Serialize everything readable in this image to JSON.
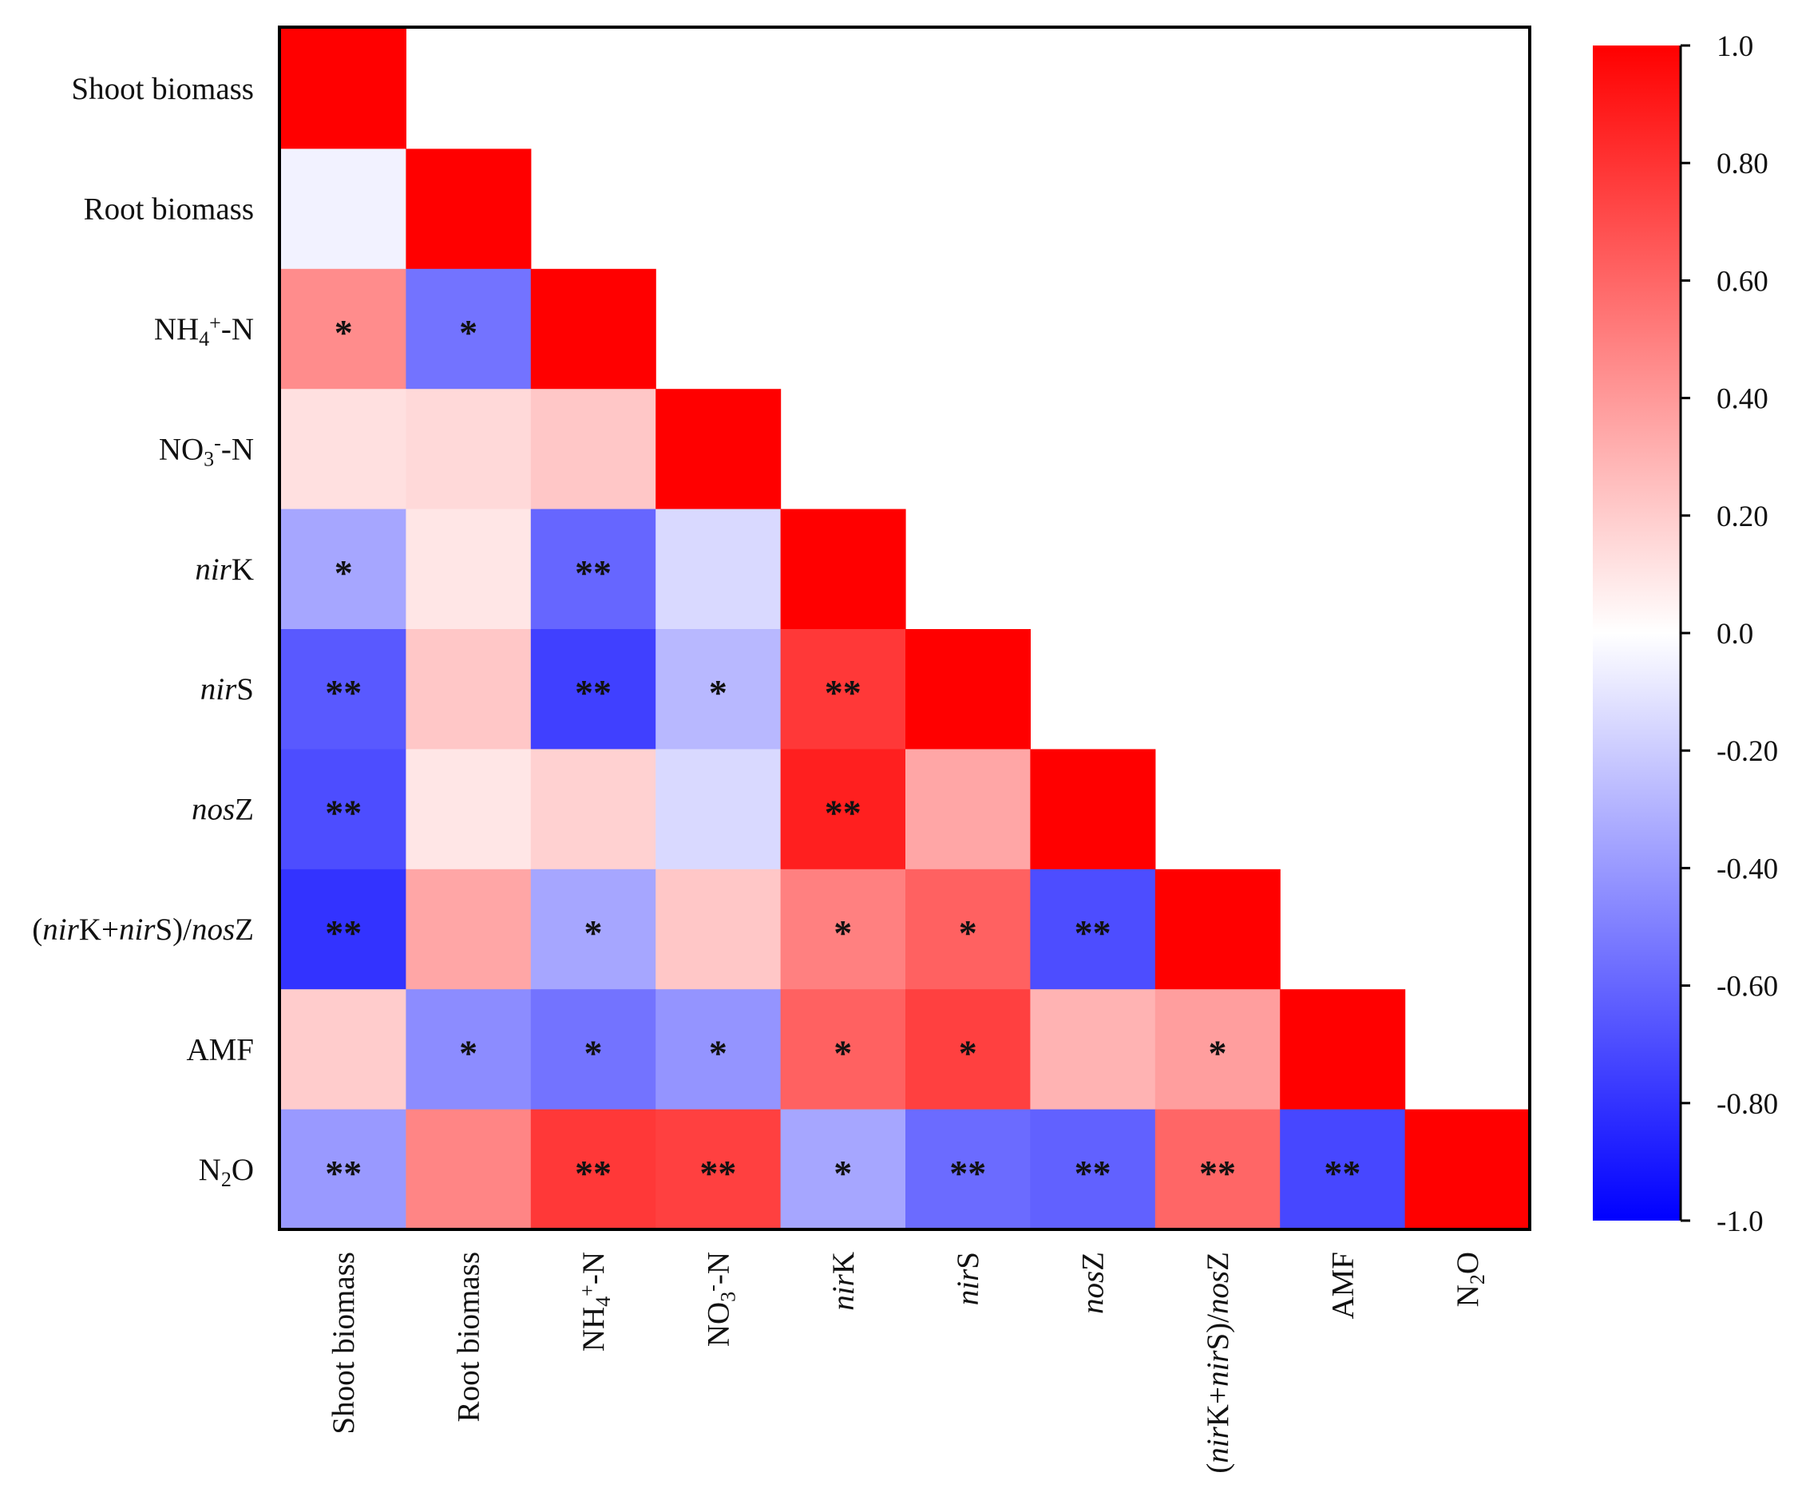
{
  "chart_data": {
    "type": "heatmap",
    "title": "",
    "variables": [
      {
        "id": "shoot",
        "parts": [
          {
            "t": "Shoot biomass"
          }
        ]
      },
      {
        "id": "root",
        "parts": [
          {
            "t": "Root biomass"
          }
        ]
      },
      {
        "id": "nh4",
        "parts": [
          {
            "t": "NH"
          },
          {
            "t": "4",
            "s": "sub"
          },
          {
            "t": "+",
            "s": "sup"
          },
          {
            "t": "-N"
          }
        ]
      },
      {
        "id": "no3",
        "parts": [
          {
            "t": "NO"
          },
          {
            "t": "3",
            "s": "sub"
          },
          {
            "t": "-",
            "s": "sup"
          },
          {
            "t": "-N"
          }
        ]
      },
      {
        "id": "nirk",
        "parts": [
          {
            "t": "nir",
            "s": "i"
          },
          {
            "t": "K"
          }
        ]
      },
      {
        "id": "nirs",
        "parts": [
          {
            "t": "nir",
            "s": "i"
          },
          {
            "t": "S"
          }
        ]
      },
      {
        "id": "nosz",
        "parts": [
          {
            "t": "nos",
            "s": "i"
          },
          {
            "t": "Z"
          }
        ]
      },
      {
        "id": "ratio",
        "parts": [
          {
            "t": "("
          },
          {
            "t": "nir",
            "s": "i"
          },
          {
            "t": "K+"
          },
          {
            "t": "nir",
            "s": "i"
          },
          {
            "t": "S)/"
          },
          {
            "t": "nos",
            "s": "i"
          },
          {
            "t": "Z"
          }
        ]
      },
      {
        "id": "amf",
        "parts": [
          {
            "t": "AMF"
          }
        ]
      },
      {
        "id": "n2o",
        "parts": [
          {
            "t": "N"
          },
          {
            "t": "2",
            "s": "sub"
          },
          {
            "t": "O"
          }
        ]
      }
    ],
    "matrix": [
      [
        1.0
      ],
      [
        -0.05,
        1.0
      ],
      [
        0.45,
        -0.55,
        1.0
      ],
      [
        0.12,
        0.15,
        0.22,
        1.0
      ],
      [
        -0.35,
        0.1,
        -0.6,
        -0.15,
        1.0
      ],
      [
        -0.65,
        0.22,
        -0.75,
        -0.28,
        0.78,
        1.0
      ],
      [
        -0.7,
        0.1,
        0.18,
        -0.15,
        0.88,
        0.35,
        1.0
      ],
      [
        -0.8,
        0.35,
        -0.35,
        0.22,
        0.5,
        0.62,
        -0.7,
        1.0
      ],
      [
        0.2,
        -0.45,
        -0.55,
        -0.42,
        0.62,
        0.75,
        0.3,
        0.38,
        1.0
      ],
      [
        -0.4,
        0.48,
        0.78,
        0.75,
        -0.35,
        -0.58,
        -0.62,
        0.6,
        -0.72,
        1.0
      ]
    ],
    "significance": [
      [
        ""
      ],
      [
        "",
        ""
      ],
      [
        "*",
        "*",
        ""
      ],
      [
        "",
        "",
        "",
        ""
      ],
      [
        "*",
        "",
        "**",
        "",
        ""
      ],
      [
        "**",
        "",
        "**",
        "*",
        "**",
        ""
      ],
      [
        "**",
        "",
        "",
        "",
        "**",
        "",
        ""
      ],
      [
        "**",
        "",
        "*",
        "",
        "*",
        "*",
        "**",
        ""
      ],
      [
        "",
        "*",
        "*",
        "*",
        "*",
        "*",
        "",
        "*",
        ""
      ],
      [
        "**",
        "",
        "**",
        "**",
        "*",
        "**",
        "**",
        "**",
        "**",
        ""
      ]
    ],
    "colorbar": {
      "range": [
        -1.0,
        1.0
      ],
      "ticks": [
        1.0,
        0.8,
        0.6,
        0.4,
        0.2,
        0.0,
        -0.2,
        -0.4,
        -0.6,
        -0.8,
        -1.0
      ],
      "tick_labels": [
        "1.0",
        "0.80",
        "0.60",
        "0.40",
        "0.20",
        "0.0",
        "-0.20",
        "-0.40",
        "-0.60",
        "-0.80",
        "-1.0"
      ],
      "colors": {
        "positive": "#ff0000",
        "negative": "#0000ff",
        "zero": "#ffffff"
      }
    },
    "grid": false,
    "legend": "right (colorbar)"
  }
}
